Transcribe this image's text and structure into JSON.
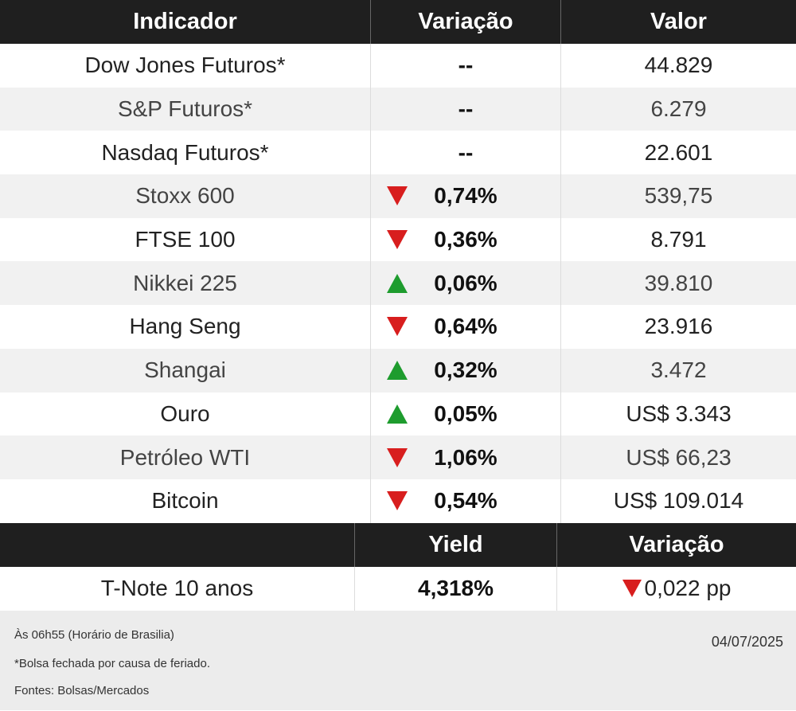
{
  "header": {
    "col1": "Indicador",
    "col2": "Variação",
    "col3": "Valor"
  },
  "rows": [
    {
      "name": "Dow Jones Futuros*",
      "dir": "none",
      "var": "--",
      "value": "44.829"
    },
    {
      "name": "S&P Futuros*",
      "dir": "none",
      "var": "--",
      "value": "6.279"
    },
    {
      "name": "Nasdaq Futuros*",
      "dir": "none",
      "var": "--",
      "value": "22.601"
    },
    {
      "name": "Stoxx 600",
      "dir": "down",
      "var": "0,74%",
      "value": "539,75"
    },
    {
      "name": "FTSE 100",
      "dir": "down",
      "var": "0,36%",
      "value": "8.791"
    },
    {
      "name": "Nikkei 225",
      "dir": "up",
      "var": "0,06%",
      "value": "39.810"
    },
    {
      "name": "Hang Seng",
      "dir": "down",
      "var": "0,64%",
      "value": "23.916"
    },
    {
      "name": "Shangai",
      "dir": "up",
      "var": "0,32%",
      "value": "3.472"
    },
    {
      "name": "Ouro",
      "dir": "up",
      "var": "0,05%",
      "value": "US$ 3.343"
    },
    {
      "name": "Petróleo WTI",
      "dir": "down",
      "var": "1,06%",
      "value": "US$ 66,23"
    },
    {
      "name": "Bitcoin",
      "dir": "down",
      "var": "0,54%",
      "value": "US$ 109.014"
    }
  ],
  "treasury": {
    "header": {
      "col1": "",
      "col2": "Yield",
      "col3": "Variação"
    },
    "name": "T-Note 10 anos",
    "yield": "4,318%",
    "dir": "down",
    "change": "0,022 pp"
  },
  "footer": {
    "time_note": "Às 06h55 (Horário  de Brasilia)",
    "holiday_note": "*Bolsa fechada por causa de feriado.",
    "sources": "Fontes: Bolsas/Mercados",
    "date": "04/07/2025"
  },
  "colors": {
    "down": "#d81e1e",
    "up": "#1e9c2e",
    "header_bg": "#1f1f1f"
  }
}
